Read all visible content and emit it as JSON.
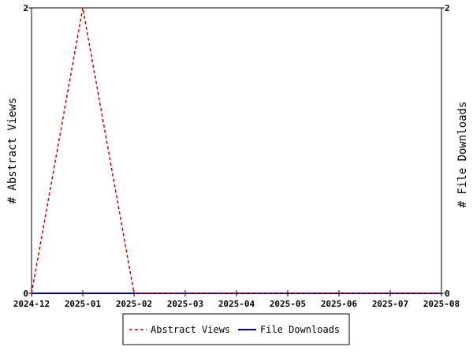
{
  "chart_data": {
    "type": "line",
    "x": [
      "2024-12",
      "2025-01",
      "2025-02",
      "2025-03",
      "2025-04",
      "2025-05",
      "2025-06",
      "2025-07",
      "2025-08"
    ],
    "series": [
      {
        "name": "Abstract Views",
        "axis": "left",
        "style": "dashed",
        "color": "#cc0000",
        "values": [
          0,
          2,
          0,
          0,
          0,
          0,
          0,
          0,
          0
        ]
      },
      {
        "name": "File Downloads",
        "axis": "right",
        "style": "solid",
        "color": "#000099",
        "values": [
          0,
          0,
          0,
          0,
          0,
          0,
          0,
          0,
          0
        ]
      }
    ],
    "ylabel_left": "# Abstract Views",
    "ylabel_right": "# File Downloads",
    "ylim_left": [
      0,
      2
    ],
    "ylim_right": [
      0,
      2
    ],
    "y_ticks_left": [
      "0",
      "2"
    ],
    "y_ticks_right": [
      "0",
      "2"
    ],
    "legend_position": "bottom-center",
    "grid": false
  }
}
